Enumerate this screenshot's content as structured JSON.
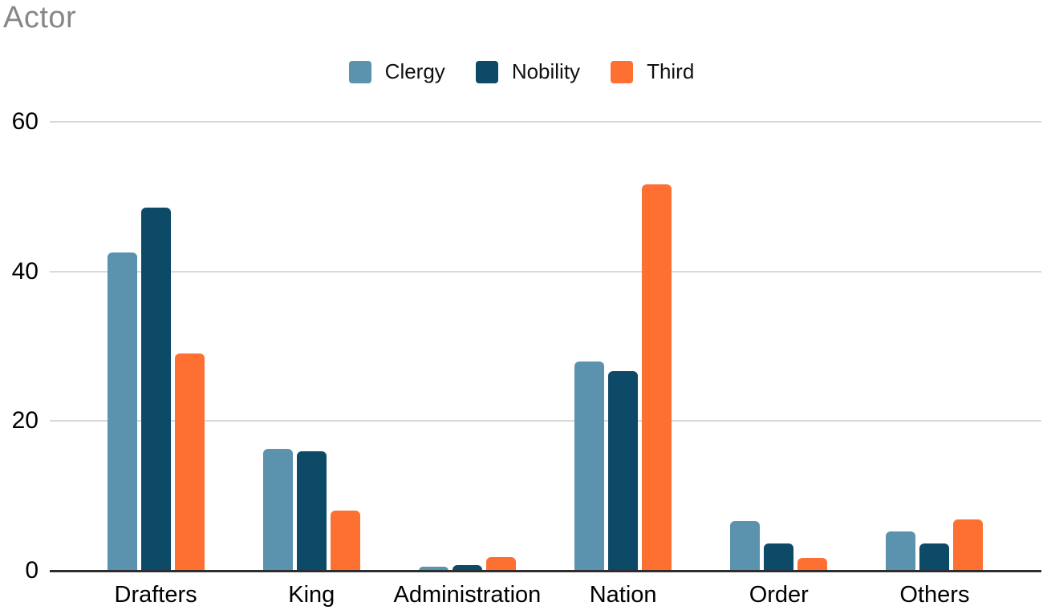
{
  "title": "Actor",
  "colors": {
    "clergy": "#5b92ae",
    "nobility": "#0d4a68",
    "third": "#fd7031",
    "title_text": "#878787",
    "gridline": "#d9d9d9",
    "axis_line": "#2d2d2d",
    "label_text": "#000000"
  },
  "chart_data": {
    "type": "bar",
    "title": "Actor",
    "categories": [
      "Drafters",
      "King",
      "Administration",
      "Nation",
      "Order",
      "Others"
    ],
    "series": [
      {
        "name": "Clergy",
        "color": "#5b92ae",
        "values": [
          42.5,
          16.3,
          0.5,
          28.0,
          6.6,
          5.3
        ]
      },
      {
        "name": "Nobility",
        "color": "#0d4a68",
        "values": [
          48.5,
          16.0,
          0.8,
          26.7,
          3.6,
          3.6
        ]
      },
      {
        "name": "Third",
        "color": "#fd7031",
        "values": [
          29.0,
          8.0,
          1.8,
          51.7,
          1.7,
          6.9
        ]
      }
    ],
    "xlabel": "",
    "ylabel": "",
    "ylim": [
      0,
      60
    ],
    "yticks": [
      0,
      20,
      40,
      60
    ],
    "grid": true,
    "legend_position": "top-center"
  }
}
